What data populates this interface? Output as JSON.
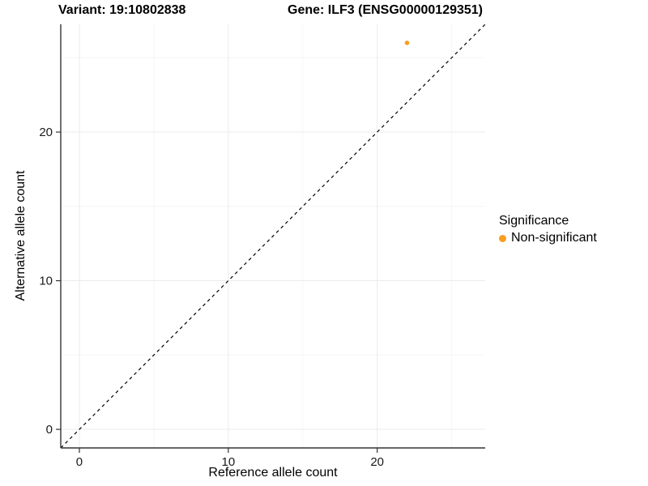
{
  "title": {
    "variant": "Variant: 19:10802838",
    "gene": "Gene: ILF3 (ENSG00000129351)"
  },
  "chart_data": {
    "type": "scatter",
    "title": "Variant: 19:10802838    Gene: ILF3 (ENSG00000129351)",
    "xlabel": "Reference allele count",
    "ylabel": "Alternative allele count",
    "xlim": [
      -1.25,
      27.25
    ],
    "ylim": [
      -1.25,
      27.25
    ],
    "x_ticks": [
      0,
      10,
      20
    ],
    "y_ticks": [
      0,
      10,
      20
    ],
    "x_minor_ticks": [
      5,
      15,
      25
    ],
    "y_minor_ticks": [
      5,
      15,
      25
    ],
    "grid": "major+minor",
    "series": [
      {
        "name": "Non-significant",
        "color": "#FA9D20",
        "points": [
          {
            "x": 22,
            "y": 26
          }
        ]
      }
    ],
    "reference_line": {
      "kind": "identity y=x",
      "style": "dashed",
      "color": "#000000"
    },
    "legend": {
      "title": "Significance",
      "position": "right",
      "entries": [
        {
          "label": "Non-significant",
          "color": "#FA9D20"
        }
      ]
    }
  },
  "colors": {
    "background": "#FFFFFF",
    "grid_major": "#EBEBEB",
    "grid_minor": "#F5F5F5",
    "axis": "#333333",
    "tick_text": "#1A1A1A",
    "point": "#FA9D20"
  }
}
